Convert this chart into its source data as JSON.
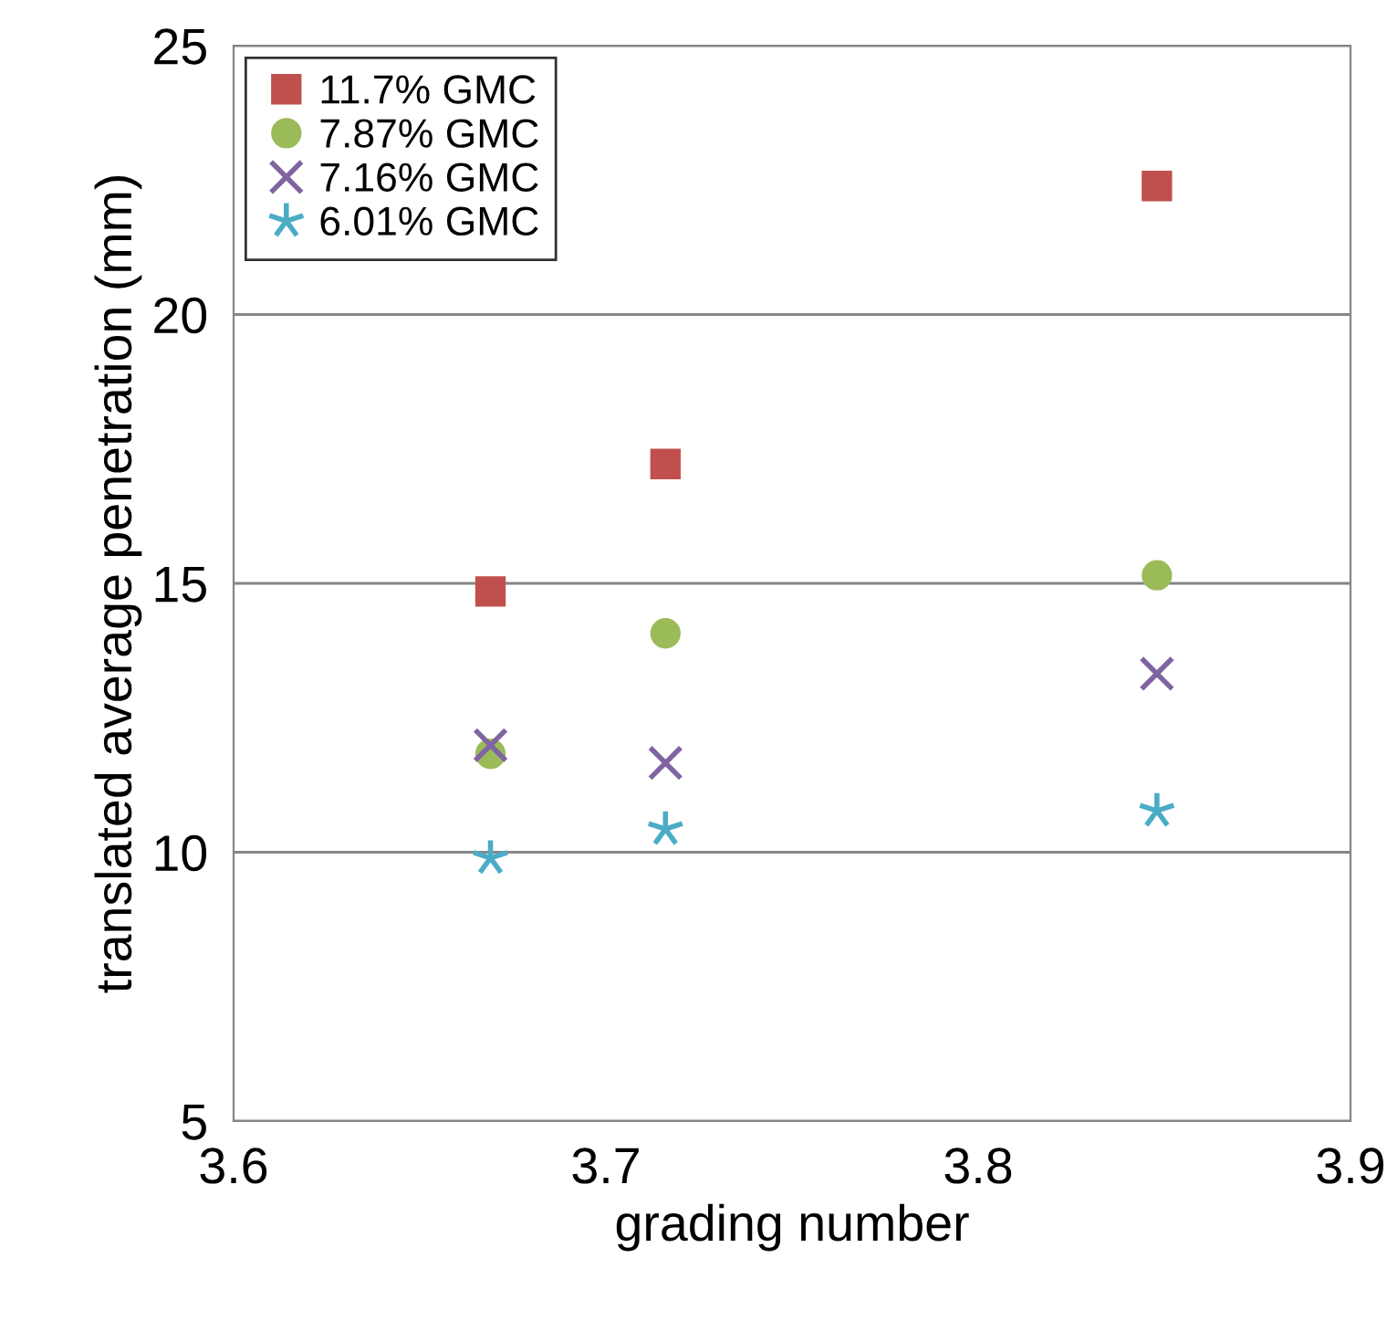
{
  "chart_data": {
    "type": "scatter",
    "xlabel": "grading number",
    "ylabel": "translated average penetration (mm)",
    "x": [
      3.669,
      3.716,
      3.848
    ],
    "series": [
      {
        "name": "11.7% GMC",
        "color": "#c0504d",
        "marker": "square",
        "values": [
          14.85,
          17.22,
          22.39
        ]
      },
      {
        "name": "7.87% GMC",
        "color": "#9bbb59",
        "marker": "circle",
        "values": [
          11.83,
          14.07,
          15.15
        ]
      },
      {
        "name": "7.16% GMC",
        "color": "#8064a2",
        "marker": "cross",
        "values": [
          11.99,
          11.66,
          13.32
        ]
      },
      {
        "name": "6.01% GMC",
        "color": "#4bacc6",
        "marker": "star",
        "values": [
          9.89,
          10.43,
          10.77
        ]
      }
    ],
    "xlim": [
      3.6,
      3.9
    ],
    "xticks": [
      3.6,
      3.7,
      3.8,
      3.9
    ],
    "ylim": [
      5,
      25
    ],
    "yticks": [
      5,
      10,
      15,
      20,
      25
    ],
    "grid": "y",
    "legend": "top left"
  }
}
